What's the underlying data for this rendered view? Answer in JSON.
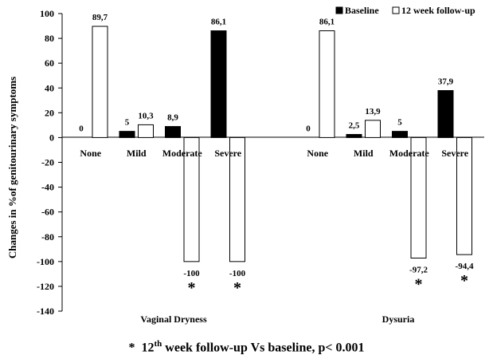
{
  "chart_data": {
    "type": "bar",
    "ylabel": "Changes in %of genitourinary symptoms",
    "ylim": [
      -140,
      100
    ],
    "yticks": [
      100,
      80,
      60,
      40,
      20,
      0,
      -20,
      -40,
      -60,
      -80,
      -100,
      -120,
      -140
    ],
    "grid": false,
    "legend_position": "top-right",
    "groups": [
      {
        "name": "Vaginal Dryness",
        "categories": [
          "None",
          "Mild",
          "Moderate",
          "Severe"
        ],
        "series": [
          {
            "name": "Baseline",
            "values": [
              0,
              5,
              8.9,
              86.1
            ],
            "labels": [
              "0",
              "5",
              "8,9",
              "86,1"
            ]
          },
          {
            "name": "12 week follow-up",
            "values": [
              89.7,
              10.3,
              -100,
              -100
            ],
            "labels": [
              "89,7",
              "10,3",
              "-100",
              "-100"
            ]
          }
        ],
        "significant": [
          false,
          false,
          true,
          true
        ]
      },
      {
        "name": "Dysuria",
        "categories": [
          "None",
          "Mild",
          "Moderate",
          "Severe"
        ],
        "series": [
          {
            "name": "Baseline",
            "values": [
              0,
              2.5,
              5,
              37.9
            ],
            "labels": [
              "0",
              "2,5",
              "5",
              "37,9"
            ]
          },
          {
            "name": "12 week follow-up",
            "values": [
              86.1,
              13.9,
              -97.2,
              -94.4
            ],
            "labels": [
              "86,1",
              "13,9",
              "-97,2",
              "-94,4"
            ]
          }
        ],
        "significant": [
          false,
          false,
          true,
          true
        ]
      }
    ],
    "colors": {
      "Baseline": "#000000",
      "12 week follow-up": "#ffffff",
      "outline": "#000000"
    },
    "significance_marker": "*"
  },
  "footnote": {
    "star": "*",
    "num": "12",
    "sup": "th",
    "rest": "week follow-up   Vs baseline, p< 0.001"
  }
}
